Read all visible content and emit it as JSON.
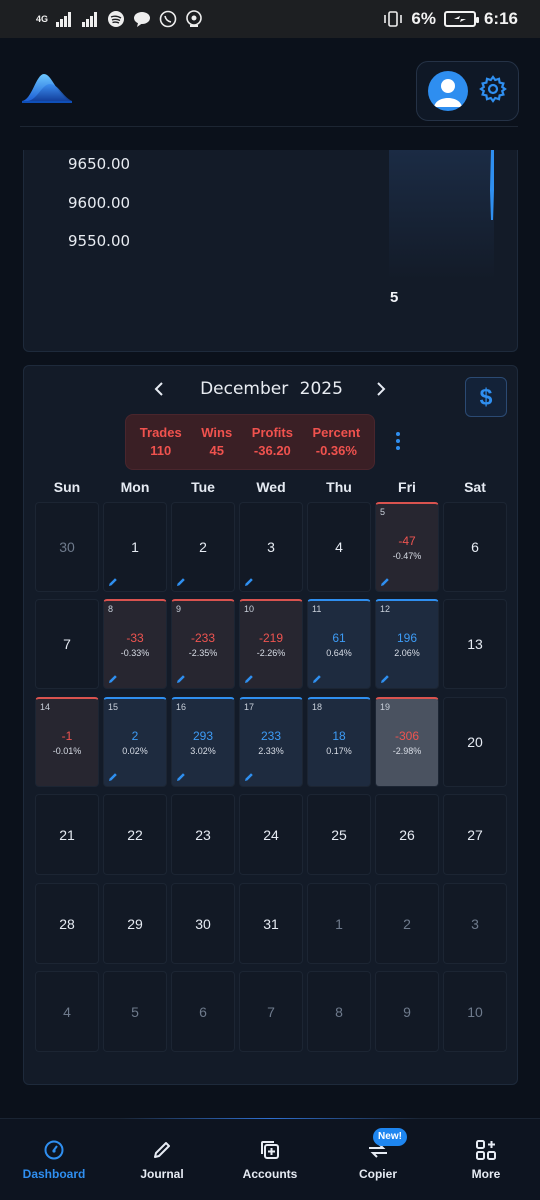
{
  "status_bar": {
    "network": "4G",
    "battery": "6%",
    "time": "6:16"
  },
  "header": {
    "logo_icon": "mountain-logo",
    "avatar_icon": "user-avatar-icon",
    "settings_icon": "gear-icon"
  },
  "chart": {
    "y_ticks": [
      "9650.00",
      "9600.00",
      "9550.00"
    ],
    "x_tick": "5"
  },
  "calendar": {
    "month": "December",
    "year": "2025",
    "currency_symbol": "$",
    "stats": {
      "trades_label": "Trades",
      "trades_value": "110",
      "wins_label": "Wins",
      "wins_value": "45",
      "profits_label": "Profits",
      "profits_value": "-36.20",
      "percent_label": "Percent",
      "percent_value": "-0.36%"
    },
    "weekdays": [
      "Sun",
      "Mon",
      "Tue",
      "Wed",
      "Thu",
      "Fri",
      "Sat"
    ],
    "days": [
      {
        "label": "30",
        "muted": true
      },
      {
        "label": "1",
        "edit": true
      },
      {
        "label": "2",
        "edit": true
      },
      {
        "label": "3",
        "edit": true
      },
      {
        "label": "4"
      },
      {
        "label": "5",
        "type": "loss",
        "pnl": "-47",
        "pct": "-0.47%",
        "edit": true
      },
      {
        "label": "6"
      },
      {
        "label": "7"
      },
      {
        "label": "8",
        "type": "loss",
        "pnl": "-33",
        "pct": "-0.33%",
        "edit": true
      },
      {
        "label": "9",
        "type": "loss",
        "pnl": "-233",
        "pct": "-2.35%",
        "edit": true
      },
      {
        "label": "10",
        "type": "loss",
        "pnl": "-219",
        "pct": "-2.26%",
        "edit": true
      },
      {
        "label": "11",
        "type": "win",
        "pnl": "61",
        "pct": "0.64%",
        "edit": true
      },
      {
        "label": "12",
        "type": "win",
        "pnl": "196",
        "pct": "2.06%",
        "edit": true
      },
      {
        "label": "13"
      },
      {
        "label": "14",
        "type": "loss",
        "pnl": "-1",
        "pct": "-0.01%"
      },
      {
        "label": "15",
        "type": "win",
        "pnl": "2",
        "pct": "0.02%",
        "edit": true
      },
      {
        "label": "16",
        "type": "win",
        "pnl": "293",
        "pct": "3.02%",
        "edit": true
      },
      {
        "label": "17",
        "type": "win",
        "pnl": "233",
        "pct": "2.33%",
        "edit": true
      },
      {
        "label": "18",
        "type": "win",
        "pnl": "18",
        "pct": "0.17%"
      },
      {
        "label": "19",
        "type": "loss",
        "pnl": "-306",
        "pct": "-2.98%",
        "selected": true
      },
      {
        "label": "20"
      },
      {
        "label": "21"
      },
      {
        "label": "22"
      },
      {
        "label": "23"
      },
      {
        "label": "24"
      },
      {
        "label": "25"
      },
      {
        "label": "26"
      },
      {
        "label": "27"
      },
      {
        "label": "28"
      },
      {
        "label": "29"
      },
      {
        "label": "30"
      },
      {
        "label": "31"
      },
      {
        "label": "1",
        "muted": true
      },
      {
        "label": "2",
        "muted": true
      },
      {
        "label": "3",
        "muted": true
      },
      {
        "label": "4",
        "muted": true
      },
      {
        "label": "5",
        "muted": true
      },
      {
        "label": "6",
        "muted": true
      },
      {
        "label": "7",
        "muted": true
      },
      {
        "label": "8",
        "muted": true
      },
      {
        "label": "9",
        "muted": true
      },
      {
        "label": "10",
        "muted": true
      }
    ]
  },
  "bottom_nav": {
    "items": [
      {
        "label": "Dashboard",
        "icon": "dashboard-icon",
        "active": true
      },
      {
        "label": "Journal",
        "icon": "pencil-icon"
      },
      {
        "label": "Accounts",
        "icon": "accounts-icon"
      },
      {
        "label": "Copier",
        "icon": "copier-icon"
      },
      {
        "label": "More",
        "icon": "grid-plus-icon"
      }
    ],
    "badge": "New!"
  },
  "colors": {
    "accent": "#2f8ff0",
    "loss": "#ee5450",
    "background": "#0b111b"
  }
}
